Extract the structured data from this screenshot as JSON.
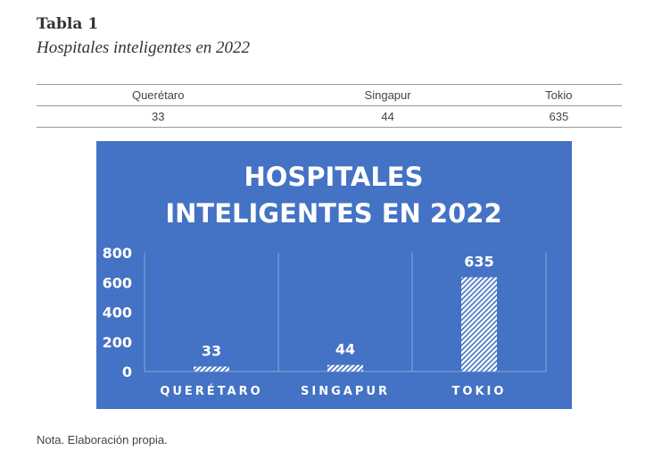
{
  "heading": {
    "label": "Tabla 1",
    "caption": "Hospitales inteligentes en 2022"
  },
  "table": {
    "headers": [
      "Querétaro",
      "Singapur",
      "Tokio"
    ],
    "rows": [
      [
        "33",
        "44",
        "635"
      ]
    ]
  },
  "chart_data": {
    "type": "bar",
    "title_lines": [
      "HOSPITALES",
      "INTELIGENTES EN 2022"
    ],
    "categories": [
      "QUERÉTARO",
      "SINGAPUR",
      "TOKIO"
    ],
    "values": [
      33,
      44,
      635
    ],
    "data_labels": [
      "33",
      "44",
      "635"
    ],
    "yticks": [
      "0",
      "200",
      "400",
      "600",
      "800"
    ],
    "ylim": [
      0,
      800
    ],
    "xlabel": "",
    "ylabel": "",
    "grid": "vertical category separators",
    "background_color": "#4472c4",
    "bar_fill": "white diagonal hatch"
  },
  "note": "Nota. Elaboración propia."
}
